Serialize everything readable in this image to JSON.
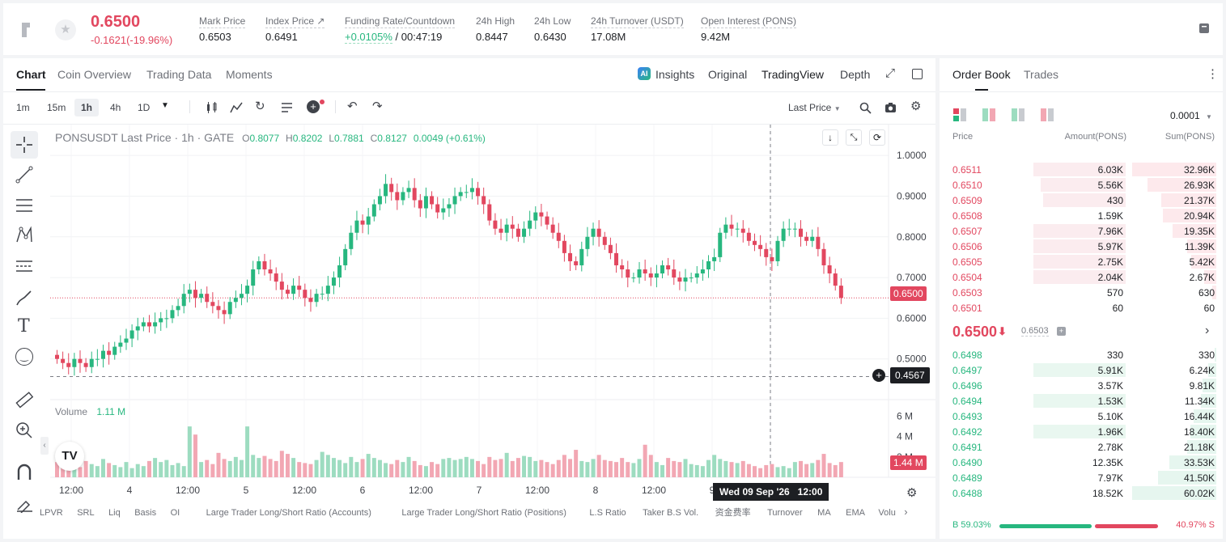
{
  "header": {
    "last_price": "0.6500",
    "change": "-0.1621(-19.96%)",
    "stats": [
      {
        "label": "Mark Price",
        "value": "0.6503"
      },
      {
        "label": "Index Price ↗",
        "value": "0.6491"
      },
      {
        "label": "Funding Rate/Countdown",
        "value_rate": "+0.0105%",
        "value_countdown": "/ 00:47:19"
      },
      {
        "label": "24h High",
        "value": "0.8447"
      },
      {
        "label": "24h Low",
        "value": "0.6430"
      },
      {
        "label": "24h Turnover (USDT)",
        "value": "17.08M"
      },
      {
        "label": "Open Interest (PONS)",
        "value": "9.42M"
      }
    ]
  },
  "chart_tabs": [
    "Chart",
    "Coin Overview",
    "Trading Data",
    "Moments"
  ],
  "view_tabs": {
    "insights": "Insights",
    "original": "Original",
    "tradingview": "TradingView",
    "depth": "Depth"
  },
  "timeframes": [
    "1m",
    "15m",
    "1h",
    "4h",
    "1D"
  ],
  "price_type": "Last Price",
  "legend": {
    "symbol": "PONSUSDT Last Price · 1h · GATE",
    "o_label": "O",
    "o": "0.8077",
    "h_label": "H",
    "h": "0.8202",
    "l_label": "L",
    "l": "0.7881",
    "c_label": "C",
    "c": "0.8127",
    "chg": "0.0049 (+0.61%)"
  },
  "volume_legend": {
    "label": "Volume",
    "value": "1.11 M"
  },
  "crosshair": {
    "price": "0.4567",
    "time": "Wed 09 Sep '26   12:00"
  },
  "price_tag": "0.6500",
  "volume_tag": "1.44 M",
  "indicators": [
    "LPVR",
    "SRL",
    "Liq",
    "Basis",
    "OI",
    "Large Trader Long/Short Ratio (Accounts)",
    "Large Trader Long/Short Ratio (Positions)",
    "L.S Ratio",
    "Taker B.S Vol.",
    "资金费率",
    "Turnover",
    "MA",
    "EMA",
    "Volu"
  ],
  "orderbook": {
    "tabs": [
      "Order Book",
      "Trades"
    ],
    "precision": "0.0001",
    "col_price": "Price",
    "col_amount": "Amount(PONS)",
    "col_sum": "Sum(PONS)",
    "asks": [
      {
        "price": "0.6511",
        "amount": "6.03K",
        "sum": "32.96K",
        "afill": 0.67,
        "sfill": 1.0
      },
      {
        "price": "0.6510",
        "amount": "5.56K",
        "sum": "26.93K",
        "afill": 0.62,
        "sfill": 0.82
      },
      {
        "price": "0.6509",
        "amount": "430",
        "sum": "21.37K",
        "afill": 0.6,
        "sfill": 0.65
      },
      {
        "price": "0.6508",
        "amount": "1.59K",
        "sum": "20.94K",
        "afill": 0.0,
        "sfill": 0.63
      },
      {
        "price": "0.6507",
        "amount": "7.96K",
        "sum": "19.35K",
        "afill": 0.67,
        "sfill": 0.52
      },
      {
        "price": "0.6506",
        "amount": "5.97K",
        "sum": "11.39K",
        "afill": 0.67,
        "sfill": 0.35
      },
      {
        "price": "0.6505",
        "amount": "2.75K",
        "sum": "5.42K",
        "afill": 0.67,
        "sfill": 0.3
      },
      {
        "price": "0.6504",
        "amount": "2.04K",
        "sum": "2.67K",
        "afill": 0.67,
        "sfill": 0.14
      },
      {
        "price": "0.6503",
        "amount": "570",
        "sum": "630",
        "afill": 0.0,
        "sfill": 0.05
      },
      {
        "price": "0.6501",
        "amount": "60",
        "sum": "60",
        "afill": 0.0,
        "sfill": 0.0
      }
    ],
    "mid_price": "0.6500",
    "mark_price": "0.6503",
    "bids": [
      {
        "price": "0.6498",
        "amount": "330",
        "sum": "330",
        "afill": 0.0,
        "sfill": 0.02
      },
      {
        "price": "0.6497",
        "amount": "5.91K",
        "sum": "6.24K",
        "afill": 0.67,
        "sfill": 0.1
      },
      {
        "price": "0.6496",
        "amount": "3.57K",
        "sum": "9.81K",
        "afill": 0.0,
        "sfill": 0.16
      },
      {
        "price": "0.6494",
        "amount": "1.53K",
        "sum": "11.34K",
        "afill": 0.67,
        "sfill": 0.18
      },
      {
        "price": "0.6493",
        "amount": "5.10K",
        "sum": "16.44K",
        "afill": 0.0,
        "sfill": 0.27
      },
      {
        "price": "0.6492",
        "amount": "1.96K",
        "sum": "18.40K",
        "afill": 0.67,
        "sfill": 0.31
      },
      {
        "price": "0.6491",
        "amount": "2.78K",
        "sum": "21.18K",
        "afill": 0.0,
        "sfill": 0.35
      },
      {
        "price": "0.6490",
        "amount": "12.35K",
        "sum": "33.53K",
        "afill": 0.0,
        "sfill": 0.56
      },
      {
        "price": "0.6489",
        "amount": "7.97K",
        "sum": "41.50K",
        "afill": 0.0,
        "sfill": 0.69
      },
      {
        "price": "0.6488",
        "amount": "18.52K",
        "sum": "60.02K",
        "afill": 0.0,
        "sfill": 1.0
      }
    ],
    "buy_ratio": "B 59.03%",
    "sell_ratio": "40.97% S",
    "buy_fraction": 0.5903
  },
  "colors": {
    "up": "#27b77f",
    "down": "#e2475f",
    "up_vol": "#9ddcc0",
    "down_vol": "#f2a7b3"
  },
  "chart_data": {
    "type": "candlestick",
    "price_axis_ticks": [
      "1.0000",
      "0.9000",
      "0.8000",
      "0.7000",
      "0.6000",
      "0.5000"
    ],
    "price_axis_values": [
      1.0,
      0.9,
      0.8,
      0.7,
      0.6,
      0.5
    ],
    "volume_axis_ticks": [
      "6 M",
      "4 M",
      "2 M"
    ],
    "volume_axis_values": [
      6,
      4,
      2
    ],
    "time_axis_ticks": [
      "12:00",
      "4",
      "12:00",
      "5",
      "12:00",
      "6",
      "12:00",
      "7",
      "12:00",
      "8",
      "12:00",
      "9",
      "12:00"
    ],
    "price_range": [
      0.4,
      1.04
    ],
    "volume_range": [
      0,
      7
    ],
    "closes": [
      0.5,
      0.49,
      0.48,
      0.5,
      0.49,
      0.48,
      0.5,
      0.5,
      0.52,
      0.51,
      0.53,
      0.54,
      0.55,
      0.57,
      0.58,
      0.59,
      0.58,
      0.59,
      0.6,
      0.6,
      0.62,
      0.63,
      0.66,
      0.67,
      0.65,
      0.66,
      0.64,
      0.63,
      0.62,
      0.61,
      0.64,
      0.65,
      0.66,
      0.68,
      0.72,
      0.74,
      0.72,
      0.71,
      0.69,
      0.67,
      0.66,
      0.68,
      0.67,
      0.65,
      0.64,
      0.66,
      0.66,
      0.68,
      0.7,
      0.73,
      0.77,
      0.81,
      0.84,
      0.83,
      0.85,
      0.88,
      0.9,
      0.93,
      0.91,
      0.89,
      0.91,
      0.92,
      0.89,
      0.87,
      0.9,
      0.88,
      0.86,
      0.87,
      0.88,
      0.9,
      0.91,
      0.91,
      0.92,
      0.9,
      0.88,
      0.84,
      0.82,
      0.81,
      0.83,
      0.82,
      0.8,
      0.82,
      0.84,
      0.86,
      0.85,
      0.83,
      0.81,
      0.79,
      0.76,
      0.74,
      0.73,
      0.77,
      0.8,
      0.82,
      0.8,
      0.78,
      0.76,
      0.73,
      0.72,
      0.7,
      0.7,
      0.72,
      0.71,
      0.7,
      0.71,
      0.73,
      0.72,
      0.7,
      0.69,
      0.7,
      0.7,
      0.71,
      0.72,
      0.74,
      0.75,
      0.81,
      0.83,
      0.82,
      0.82,
      0.81,
      0.79,
      0.78,
      0.77,
      0.75,
      0.74,
      0.79,
      0.82,
      0.82,
      0.82,
      0.8,
      0.79,
      0.8,
      0.77,
      0.73,
      0.71,
      0.68,
      0.65
    ],
    "volumes": [
      1.5,
      1.8,
      1.2,
      1.4,
      1.0,
      1.6,
      1.3,
      1.1,
      1.8,
      1.4,
      1.2,
      1.0,
      1.5,
      0.9,
      1.3,
      1.1,
      1.6,
      1.9,
      1.5,
      1.7,
      1.2,
      1.4,
      1.1,
      5.0,
      4.2,
      1.5,
      1.7,
      1.3,
      2.4,
      1.8,
      1.6,
      2.0,
      1.7,
      5.0,
      2.2,
      1.9,
      2.1,
      1.8,
      1.6,
      2.6,
      2.3,
      1.9,
      1.5,
      1.4,
      1.3,
      1.7,
      2.5,
      2.2,
      1.9,
      1.7,
      1.4,
      2.0,
      1.5,
      1.8,
      2.3,
      1.9,
      1.7,
      1.4,
      1.3,
      1.7,
      1.5,
      2.0,
      1.6,
      1.2,
      1.1,
      1.5,
      1.3,
      1.8,
      1.9,
      1.7,
      1.8,
      2.0,
      1.8,
      1.6,
      1.3,
      2.0,
      1.7,
      1.8,
      2.4,
      1.6,
      1.9,
      2.1,
      2.0,
      1.6,
      1.7,
      1.5,
      1.3,
      1.7,
      2.2,
      1.8,
      2.7,
      1.6,
      1.5,
      1.8,
      2.2,
      1.7,
      1.6,
      1.5,
      1.9,
      1.5,
      1.4,
      1.8,
      3.2,
      2.2,
      1.5,
      1.2,
      1.9,
      1.6,
      1.5,
      1.8,
      1.3,
      1.2,
      1.1,
      1.7,
      2.2,
      1.8,
      1.6,
      1.5,
      1.4,
      1.6,
      1.3,
      1.1,
      0.9,
      1.2,
      1.3,
      1.0,
      1.1,
      0.9,
      1.5,
      1.6,
      1.3,
      1.4,
      1.7,
      2.3,
      1.4,
      1.2,
      1.5
    ]
  }
}
